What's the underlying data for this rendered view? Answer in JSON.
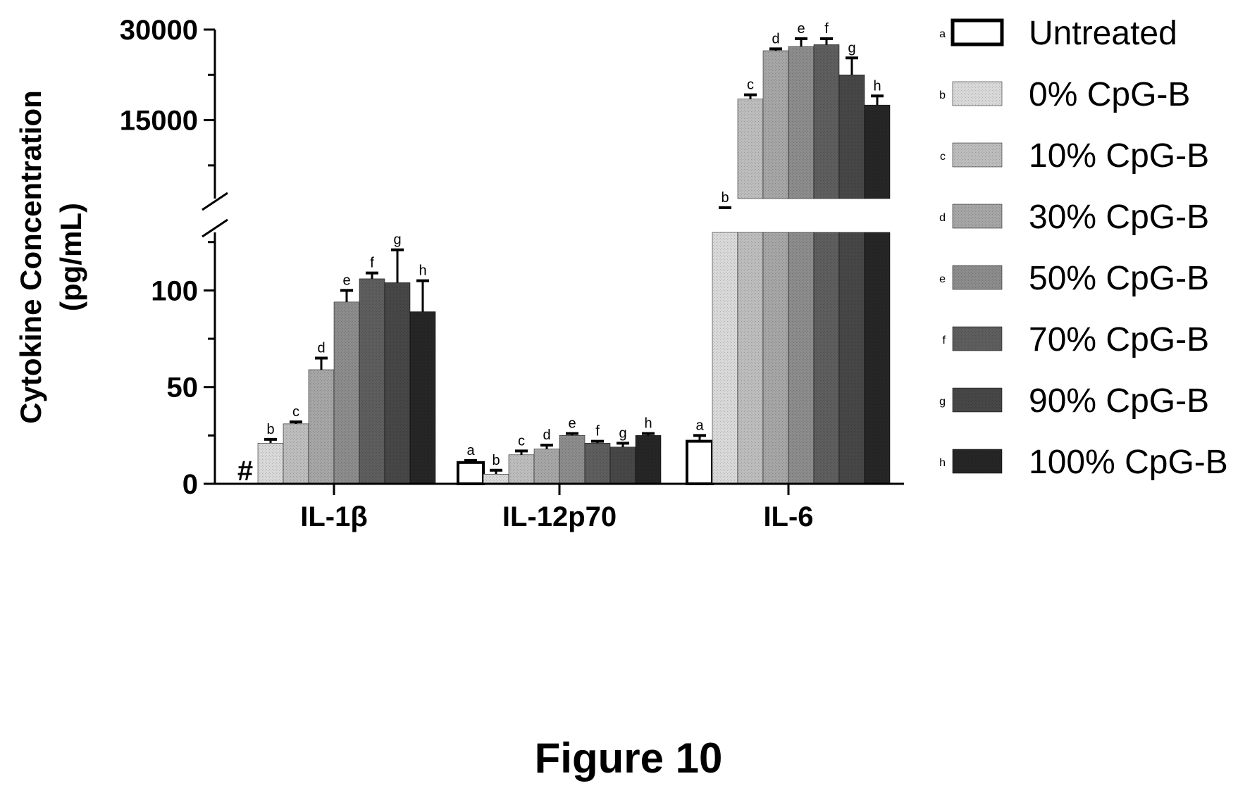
{
  "figure_label": "Figure 10",
  "chart_data": {
    "type": "bar",
    "ylabel_line1": "Cytokine Concentration",
    "ylabel_line2": "(pg/mL)",
    "categories": [
      "IL-1β",
      "IL-12p70",
      "IL-6"
    ],
    "y_axis_break": true,
    "lower_axis": {
      "range": [
        0,
        130
      ],
      "ticks": [
        0,
        50,
        100
      ]
    },
    "upper_axis": {
      "range": [
        2000,
        30000
      ],
      "ticks": [
        15000,
        30000
      ]
    },
    "legend_position": "right",
    "not_detected_marker": "#",
    "series": [
      {
        "name": "Untreated",
        "letter": "a",
        "fill": "#ffffff",
        "values": [
          null,
          11,
          22
        ],
        "errors": [
          0,
          1,
          3
        ]
      },
      {
        "name": "0% CpG-B",
        "letter": "b",
        "fill": "#d9d9d9",
        "values": [
          21,
          5,
          350
        ],
        "errors": [
          2,
          2,
          150
        ]
      },
      {
        "name": "10% CpG-B",
        "letter": "c",
        "fill": "#bdbdbd",
        "values": [
          31,
          15,
          18500
        ],
        "errors": [
          1,
          2,
          700
        ]
      },
      {
        "name": "30% CpG-B",
        "letter": "d",
        "fill": "#a6a6a6",
        "values": [
          59,
          18,
          26500
        ],
        "errors": [
          6,
          2,
          300
        ]
      },
      {
        "name": "50% CpG-B",
        "letter": "e",
        "fill": "#8c8c8c",
        "values": [
          94,
          25,
          27200
        ],
        "errors": [
          6,
          1,
          1300
        ]
      },
      {
        "name": "70% CpG-B",
        "letter": "f",
        "fill": "#5e5e5e",
        "values": [
          106,
          21,
          27500
        ],
        "errors": [
          3,
          1,
          1000
        ]
      },
      {
        "name": "90% CpG-B",
        "letter": "g",
        "fill": "#474747",
        "values": [
          104,
          19,
          22500
        ],
        "errors": [
          17,
          2,
          2800
        ]
      },
      {
        "name": "100% CpG-B",
        "letter": "h",
        "fill": "#262626",
        "values": [
          89,
          25,
          17500
        ],
        "errors": [
          16,
          1,
          1500
        ]
      }
    ]
  }
}
